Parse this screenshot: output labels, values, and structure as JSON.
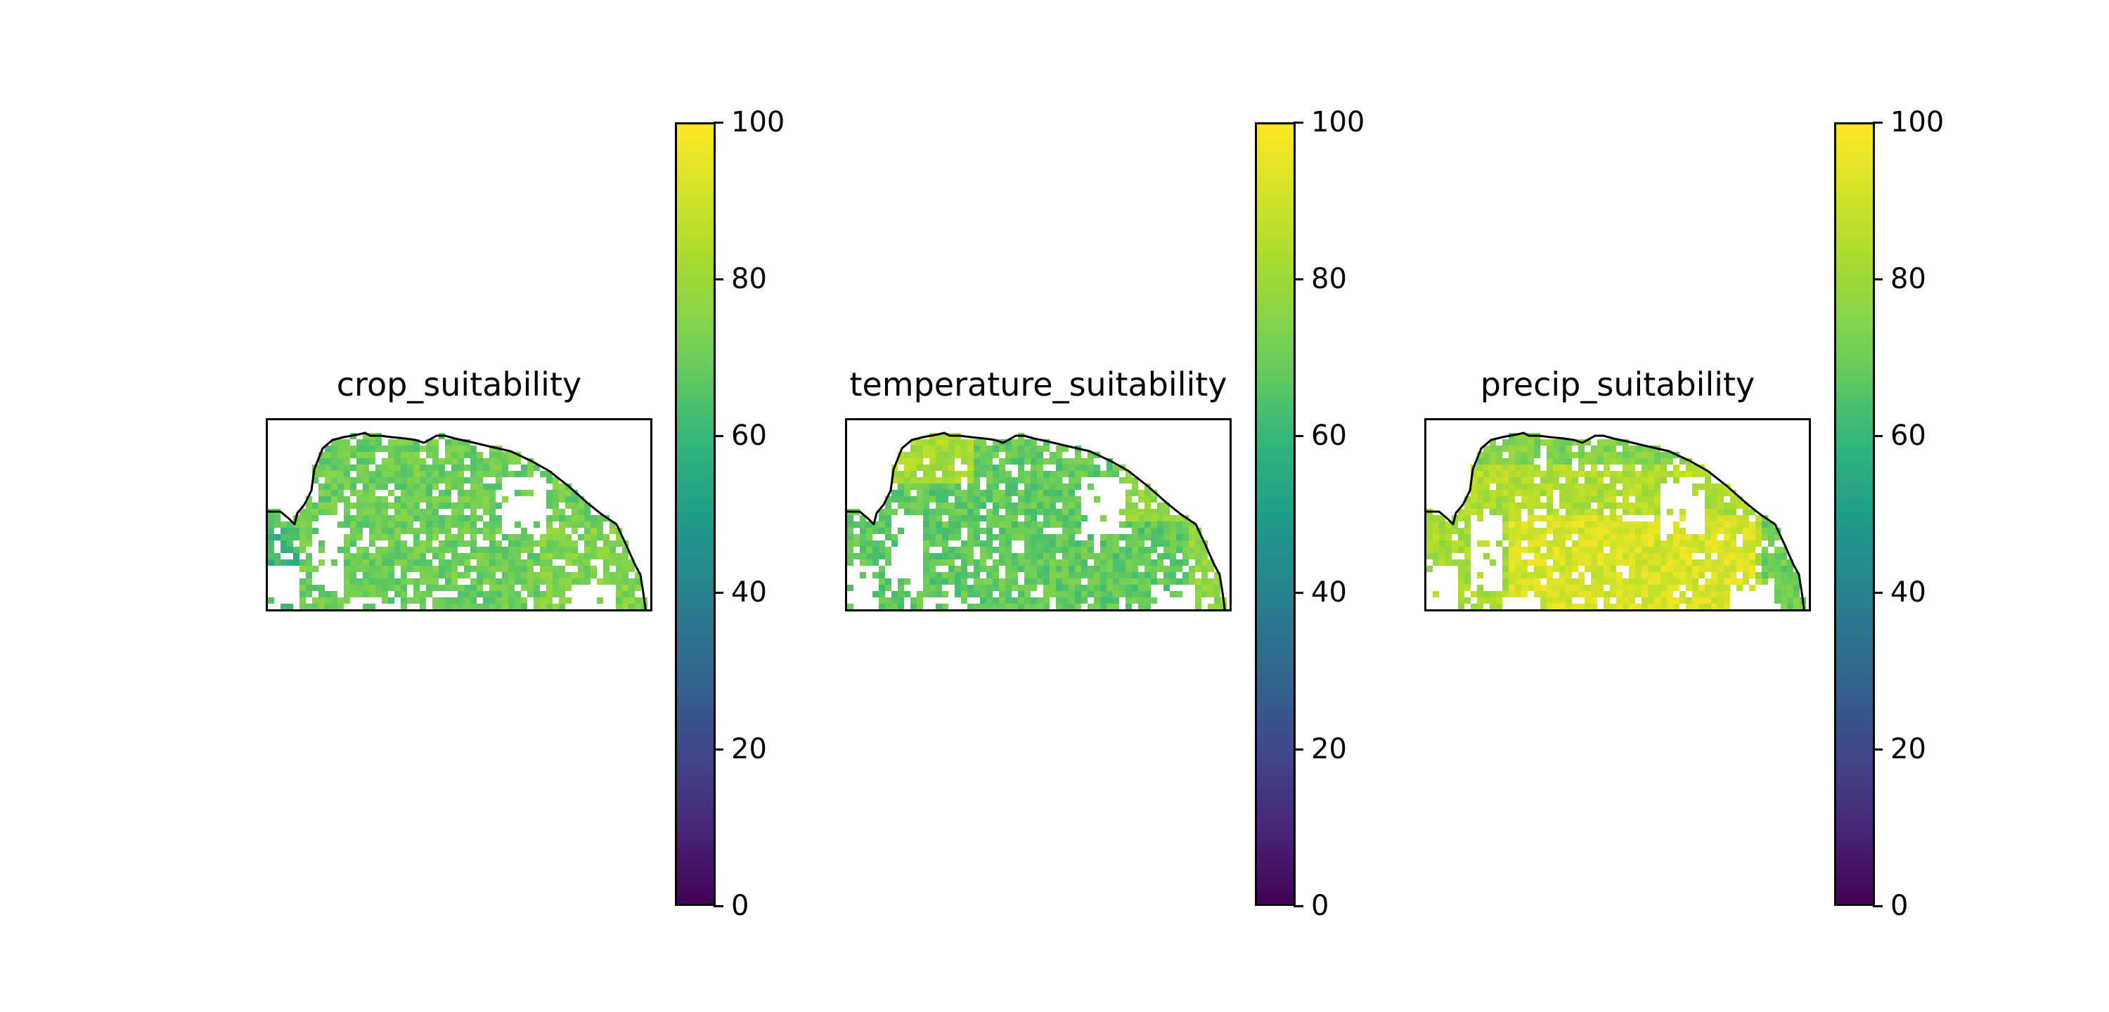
{
  "figure": {
    "colormap": "viridis",
    "colorbar_ticks": [
      "0",
      "20",
      "40",
      "60",
      "80",
      "100"
    ],
    "colorbar_range": [
      0,
      100
    ],
    "coastline_color": "#000000",
    "panels": [
      {
        "title": "crop_suitability",
        "typical_value": 70,
        "high_region": "uniform",
        "variability": 6
      },
      {
        "title": "temperature_suitability",
        "typical_value": 68,
        "high_region": "west-north",
        "variability": 6
      },
      {
        "title": "precip_suitability",
        "typical_value": 84,
        "high_region": "center",
        "variability": 6
      }
    ]
  }
}
